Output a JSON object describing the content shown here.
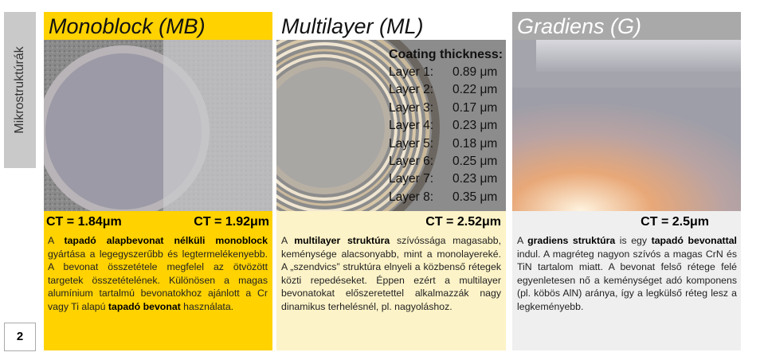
{
  "sidebar": {
    "label": "Mikrostruktúrák",
    "page_number": "2"
  },
  "columns": [
    {
      "title": "Monoblock (MB)",
      "ct": [
        "CT = 1.84μm",
        "CT = 1.92μm"
      ],
      "paragraph": [
        {
          "text": "A ",
          "bold": false
        },
        {
          "text": "tapadó alapbevonat nélküli monoblock",
          "bold": true
        },
        {
          "text": " gyártása a legegyszerűbb és legtermelékenyebb. A bevonat összetétele megfelel az ötvözött targetek összetételének. Különösen a magas alumínium tartalmú bevonatokhoz ajánlott a Cr vagy Ti alapú ",
          "bold": false
        },
        {
          "text": "tapadó bevonat",
          "bold": true
        },
        {
          "text": " használata.",
          "bold": false
        }
      ]
    },
    {
      "title": "Multilayer (ML)",
      "ct": [
        "CT = 2.52μm"
      ],
      "coating": {
        "title": "Coating thickness:",
        "layers": [
          [
            "Layer 1:",
            "0.89 μm"
          ],
          [
            "Layer 2:",
            "0.22 μm"
          ],
          [
            "Layer 3:",
            "0.17 μm"
          ],
          [
            "Layer 4:",
            "0.23 μm"
          ],
          [
            "Layer 5:",
            "0.18 μm"
          ],
          [
            "Layer 6:",
            "0.25 μm"
          ],
          [
            "Layer 7:",
            "0.23 μm"
          ],
          [
            "Layer 8:",
            "0.35 μm"
          ]
        ]
      },
      "paragraph": [
        {
          "text": "A ",
          "bold": false
        },
        {
          "text": "multilayer struktúra",
          "bold": true
        },
        {
          "text": " szívóssága magasabb, keménysége alacsonyabb, mint a monolayereké. A „szendvics” struktúra elnyeli a közbenső rétegek közti repedéseket. Éppen ezért a multilayer bevonatokat előszeretettel alkalmazzák nagy dinamikus terhelésnél, pl. nagyoláshoz.",
          "bold": false
        }
      ]
    },
    {
      "title": "Gradiens (G)",
      "ct": [
        "CT = 2.5μm"
      ],
      "paragraph": [
        {
          "text": "A ",
          "bold": false
        },
        {
          "text": "gradiens struktúra",
          "bold": true
        },
        {
          "text": " is egy ",
          "bold": false
        },
        {
          "text": "tapadó bevonattal",
          "bold": true
        },
        {
          "text": " indul. A magréteg nagyon szívós a magas CrN és TiN tartalom miatt. A bevonat felső rétege felé egyenletesen nő a keménységet adó komponens (pl. köbös AlN) aránya, így a legkülső réteg lesz a legkeményebb.",
          "bold": false
        }
      ]
    }
  ]
}
